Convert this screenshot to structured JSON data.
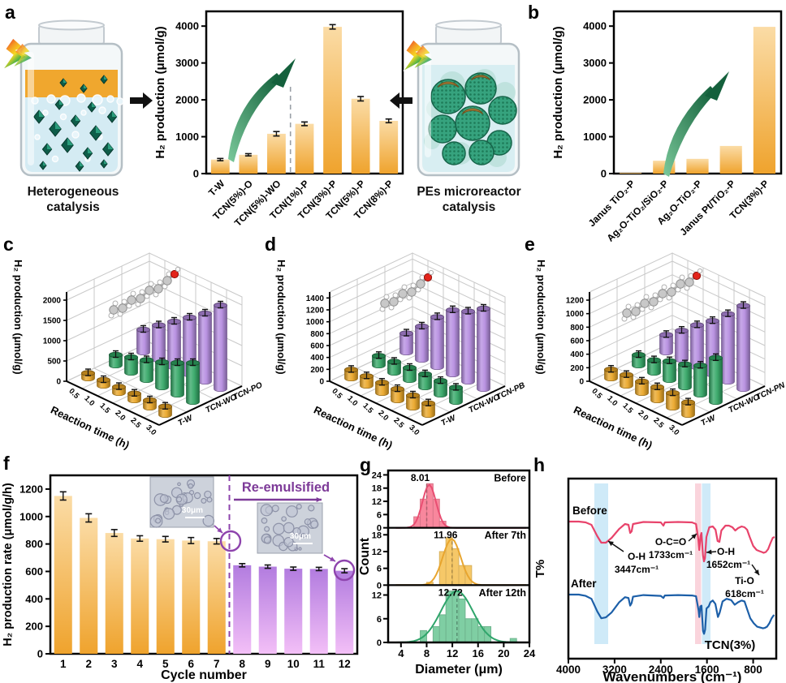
{
  "panel_letters": {
    "a": "a",
    "b": "b",
    "c": "c",
    "d": "d",
    "e": "e",
    "f": "f",
    "g": "g",
    "h": "h"
  },
  "illustrations": {
    "left_jar_caption": [
      "Heterogeneous",
      "catalysis"
    ],
    "right_jar_caption": [
      "PEs microreactor",
      "catalysis"
    ]
  },
  "chart_data": [
    {
      "id": "a",
      "type": "bar",
      "ylabel": "H₂ production (μmol/g)",
      "categories": [
        "T-W",
        "TCN(5%)-O",
        "TCN(5%)-WO",
        "TCN(1%)-P",
        "TCN(3%)-P",
        "TCN(5%)-P",
        "TCN(8%)-P"
      ],
      "values": [
        380,
        510,
        1080,
        1350,
        3980,
        2030,
        1430
      ],
      "errors": [
        30,
        30,
        60,
        50,
        60,
        60,
        50
      ],
      "yticks": [
        0,
        1000,
        2000,
        3000,
        4000
      ],
      "ylim": [
        0,
        4400
      ],
      "divider_after": "TCN(5%)-WO",
      "bar_gradient": [
        "#FBDCA6",
        "#EFA32D"
      ]
    },
    {
      "id": "b",
      "type": "bar",
      "ylabel": "H₂ production (μmol/g)",
      "categories": [
        "Janus TiO₂-P",
        "Ag₂O-TiO₂/SiO₂-P",
        "Ag₂O-TiO₂-P",
        "Janus Pt/TiO₂-P",
        "TCN(3%)-P"
      ],
      "values": [
        20,
        350,
        400,
        750,
        3980
      ],
      "errors": [
        0,
        0,
        0,
        0,
        0
      ],
      "yticks": [
        0,
        1000,
        2000,
        3000,
        4000
      ],
      "ylim": [
        0,
        4400
      ],
      "bar_gradient": [
        "#FBDCA6",
        "#EFA32D"
      ]
    },
    {
      "id": "c",
      "type": "bar3d",
      "ylabel": "H₂ production (μmol/g)",
      "xlabel": "Reaction time (h)",
      "x": [
        "0.5",
        "1.0",
        "1.5",
        "2.0",
        "2.5",
        "3.0"
      ],
      "yticks": [
        0,
        500,
        1000,
        1500,
        2000
      ],
      "ylim": [
        0,
        2200
      ],
      "series": [
        {
          "name": "T-W",
          "color": "#E9A422",
          "values": [
            130,
            140,
            150,
            165,
            180,
            205
          ]
        },
        {
          "name": "TCN-WO",
          "color": "#2FA563",
          "values": [
            260,
            380,
            490,
            620,
            780,
            960
          ]
        },
        {
          "name": "TCN-PO",
          "color": "#B48BE0",
          "values": [
            560,
            850,
            1120,
            1400,
            1680,
            2060
          ]
        }
      ]
    },
    {
      "id": "d",
      "type": "bar3d",
      "ylabel": "H₂ production (μmol/g)",
      "xlabel": "Reaction time (h)",
      "x": [
        "0.5",
        "1.0",
        "1.5",
        "2.0",
        "2.5",
        "3.0"
      ],
      "yticks": [
        0,
        200,
        400,
        600,
        800,
        1000,
        1200,
        1400
      ],
      "ylim": [
        0,
        1500
      ],
      "series": [
        {
          "name": "T-W",
          "color": "#E9A422",
          "values": [
            145,
            160,
            175,
            190,
            205,
            195
          ]
        },
        {
          "name": "TCN-WO",
          "color": "#2FA563",
          "values": [
            160,
            185,
            205,
            220,
            230,
            240
          ]
        },
        {
          "name": "TCN-PB",
          "color": "#B48BE0",
          "values": [
            320,
            560,
            840,
            1080,
            1180,
            1350
          ]
        }
      ]
    },
    {
      "id": "e",
      "type": "bar3d",
      "ylabel": "H₂ production (μmol/g)",
      "xlabel": "Reaction time (h)",
      "x": [
        "0.5",
        "1.0",
        "1.5",
        "2.0",
        "2.5",
        "3.0"
      ],
      "yticks": [
        0,
        200,
        400,
        600,
        800,
        1000,
        1200
      ],
      "ylim": [
        0,
        1320
      ],
      "series": [
        {
          "name": "T-W",
          "color": "#E9A422",
          "values": [
            130,
            160,
            170,
            195,
            215,
            185
          ]
        },
        {
          "name": "TCN-WO",
          "color": "#2FA563",
          "values": [
            155,
            185,
            280,
            340,
            430,
            650
          ]
        },
        {
          "name": "TCN-PN",
          "color": "#B48BE0",
          "values": [
            260,
            430,
            620,
            790,
            1000,
            1230
          ]
        }
      ]
    },
    {
      "id": "f",
      "type": "bar",
      "ylabel": "H₂ production rate (μmol/g/h)",
      "xlabel": "Cycle number",
      "categories": [
        "1",
        "2",
        "3",
        "4",
        "5",
        "6",
        "7",
        "8",
        "9",
        "10",
        "11",
        "12"
      ],
      "values": [
        1150,
        990,
        880,
        840,
        835,
        825,
        820,
        645,
        635,
        620,
        618,
        605
      ],
      "errors": [
        30,
        30,
        25,
        20,
        20,
        22,
        20,
        12,
        12,
        12,
        12,
        15
      ],
      "yticks": [
        0,
        200,
        400,
        600,
        800,
        1000,
        1200
      ],
      "ylim": [
        0,
        1300
      ],
      "group_split": 7,
      "annotation": "Re-emulsified",
      "inset_scale_label": "30μm",
      "bar_gradient": [
        "#FBDCA6",
        "#EFA32D"
      ],
      "bar_gradient_2": [
        "#B27CDF",
        "#F3BFF7"
      ]
    },
    {
      "id": "g",
      "type": "histogram",
      "xlabel": "Diameter (μm)",
      "ylabel": "Count",
      "xticks": [
        4,
        8,
        12,
        16,
        20,
        24
      ],
      "xlim": [
        2,
        24
      ],
      "panels": [
        {
          "label": "Before",
          "mean": "8.01",
          "color": "#F8879D",
          "line_color": "#E94E72",
          "bins": [
            [
              6,
              5
            ],
            [
              7,
              13
            ],
            [
              8,
              20
            ],
            [
              9,
              13
            ],
            [
              10,
              3
            ]
          ],
          "yticks": [
            0,
            6,
            12,
            18,
            24
          ],
          "ymax": 26,
          "curve": {
            "amp": 19.5,
            "mu": 8.4,
            "sigma": 1.05
          }
        },
        {
          "label": "After 7th",
          "mean": "11.96",
          "color": "#F6C868",
          "line_color": "#E8A52F",
          "bins": [
            [
              8,
              1
            ],
            [
              10,
              12
            ],
            [
              11,
              17
            ],
            [
              12,
              13
            ],
            [
              13,
              7
            ],
            [
              14,
              7
            ]
          ],
          "yticks": [
            0,
            6,
            12,
            18
          ],
          "ymax": 20.5,
          "curve": {
            "amp": 16.5,
            "mu": 11.9,
            "sigma": 1.4
          }
        },
        {
          "label": "After 12th",
          "mean": "12.72",
          "color": "#7FCEA3",
          "line_color": "#2FA56B",
          "bins": [
            [
              7,
              3
            ],
            [
              9,
              4
            ],
            [
              10,
              7
            ],
            [
              11,
              13
            ],
            [
              12,
              13
            ],
            [
              13,
              11
            ],
            [
              14,
              6
            ],
            [
              15,
              6
            ],
            [
              16,
              4
            ],
            [
              17,
              4
            ],
            [
              21,
              1
            ]
          ],
          "yticks": [
            0,
            6,
            12
          ],
          "ymax": 14.5,
          "curve": {
            "amp": 13,
            "mu": 12.7,
            "sigma": 2.5
          }
        }
      ]
    },
    {
      "id": "h",
      "type": "spectra",
      "xlabel": "Wavenumbers (cm⁻¹)",
      "ylabel": "T%",
      "xticks": [
        4000,
        3200,
        2400,
        1600,
        800
      ],
      "xlim": [
        4000,
        400
      ],
      "sample_label": "TCN(3%)",
      "series": [
        {
          "name": "Before",
          "color": "#E8436B",
          "points": [
            [
              4000,
              0.02
            ],
            [
              3820,
              0.02
            ],
            [
              3700,
              0.04
            ],
            [
              3600,
              0.1
            ],
            [
              3500,
              0.38
            ],
            [
              3430,
              0.54
            ],
            [
              3350,
              0.54
            ],
            [
              3250,
              0.42
            ],
            [
              3120,
              0.2
            ],
            [
              3020,
              0.08
            ],
            [
              2960,
              0.1
            ],
            [
              2930,
              0.3
            ],
            [
              2905,
              0.26
            ],
            [
              2880,
              0.08
            ],
            [
              2700,
              0.03
            ],
            [
              2400,
              0.04
            ],
            [
              2355,
              0.12
            ],
            [
              2330,
              0.04
            ],
            [
              2100,
              0.03
            ],
            [
              1860,
              0.04
            ],
            [
              1790,
              0.08
            ],
            [
              1750,
              0.45
            ],
            [
              1733,
              0.72
            ],
            [
              1712,
              0.38
            ],
            [
              1695,
              0.3
            ],
            [
              1670,
              0.85
            ],
            [
              1652,
              1.0
            ],
            [
              1635,
              0.92
            ],
            [
              1610,
              0.4
            ],
            [
              1560,
              0.16
            ],
            [
              1500,
              0.14
            ],
            [
              1452,
              0.22
            ],
            [
              1415,
              0.5
            ],
            [
              1385,
              0.52
            ],
            [
              1350,
              0.24
            ],
            [
              1280,
              0.12
            ],
            [
              1220,
              0.12
            ],
            [
              1160,
              0.16
            ],
            [
              1110,
              0.24
            ],
            [
              1060,
              0.18
            ],
            [
              1000,
              0.14
            ],
            [
              950,
              0.16
            ],
            [
              905,
              0.22
            ],
            [
              860,
              0.4
            ],
            [
              800,
              0.62
            ],
            [
              740,
              0.72
            ],
            [
              690,
              0.75
            ],
            [
              650,
              0.77
            ],
            [
              618,
              0.79
            ],
            [
              580,
              0.77
            ],
            [
              540,
              0.7
            ],
            [
              500,
              0.55
            ],
            [
              460,
              0.42
            ],
            [
              430,
              0.4
            ]
          ]
        },
        {
          "name": "After",
          "color": "#1C5FA8",
          "points": [
            [
              4000,
              0.02
            ],
            [
              3820,
              0.02
            ],
            [
              3700,
              0.05
            ],
            [
              3600,
              0.12
            ],
            [
              3500,
              0.42
            ],
            [
              3430,
              0.58
            ],
            [
              3350,
              0.56
            ],
            [
              3250,
              0.44
            ],
            [
              3120,
              0.2
            ],
            [
              3020,
              0.08
            ],
            [
              2960,
              0.1
            ],
            [
              2930,
              0.28
            ],
            [
              2905,
              0.22
            ],
            [
              2880,
              0.07
            ],
            [
              2700,
              0.03
            ],
            [
              2400,
              0.05
            ],
            [
              2355,
              0.1
            ],
            [
              2330,
              0.04
            ],
            [
              2100,
              0.03
            ],
            [
              1860,
              0.04
            ],
            [
              1790,
              0.06
            ],
            [
              1745,
              0.4
            ],
            [
              1733,
              0.55
            ],
            [
              1715,
              0.3
            ],
            [
              1695,
              0.28
            ],
            [
              1668,
              0.88
            ],
            [
              1650,
              0.95
            ],
            [
              1632,
              0.85
            ],
            [
              1608,
              0.35
            ],
            [
              1570,
              0.3
            ],
            [
              1540,
              0.2
            ],
            [
              1500,
              0.16
            ],
            [
              1455,
              0.24
            ],
            [
              1410,
              0.55
            ],
            [
              1380,
              0.45
            ],
            [
              1330,
              0.18
            ],
            [
              1260,
              0.12
            ],
            [
              1180,
              0.15
            ],
            [
              1120,
              0.26
            ],
            [
              1060,
              0.2
            ],
            [
              1000,
              0.16
            ],
            [
              950,
              0.18
            ],
            [
              900,
              0.38
            ],
            [
              850,
              0.58
            ],
            [
              790,
              0.7
            ],
            [
              730,
              0.78
            ],
            [
              680,
              0.8
            ],
            [
              630,
              0.82
            ],
            [
              600,
              0.81
            ],
            [
              560,
              0.78
            ],
            [
              520,
              0.7
            ],
            [
              480,
              0.58
            ],
            [
              440,
              0.5
            ]
          ]
        }
      ],
      "annotations": [
        {
          "lines": [
            "O-H",
            "3447cm⁻¹"
          ]
        },
        {
          "lines": [
            "O-C=O",
            "1733cm⁻¹"
          ]
        },
        {
          "lines": [
            "O-H",
            "1652cm⁻¹"
          ]
        },
        {
          "lines": [
            "Ti-O",
            "618cm⁻¹"
          ]
        }
      ]
    }
  ]
}
